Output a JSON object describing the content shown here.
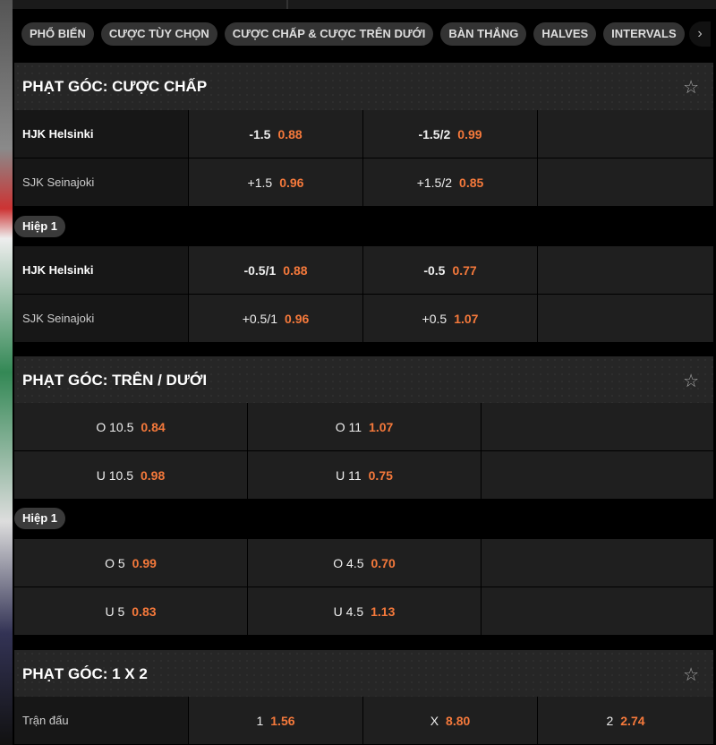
{
  "tabs": [
    "PHỔ BIẾN",
    "CƯỢC TÙY CHỌN",
    "CƯỢC CHẤP & CƯỢC TRÊN DƯỚI",
    "BÀN THẮNG",
    "HALVES",
    "INTERVALS"
  ],
  "colors": {
    "odds": "#f5793b",
    "background": "#000000"
  },
  "sections": [
    {
      "title": "PHẠT GÓC: CƯỢC CHẤP",
      "full": {
        "rows": [
          {
            "team": "HJK Helsinki",
            "c": [
              [
                "-1.5",
                "0.88"
              ],
              [
                "-1.5/2",
                "0.99"
              ]
            ]
          },
          {
            "team": "SJK Seinajoki",
            "c": [
              [
                "+1.5",
                "0.96"
              ],
              [
                "+1.5/2",
                "0.85"
              ]
            ]
          }
        ]
      },
      "half_label": "Hiệp 1",
      "half": {
        "rows": [
          {
            "team": "HJK Helsinki",
            "c": [
              [
                "-0.5/1",
                "0.88"
              ],
              [
                "-0.5",
                "0.77"
              ]
            ]
          },
          {
            "team": "SJK Seinajoki",
            "c": [
              [
                "+0.5/1",
                "0.96"
              ],
              [
                "+0.5",
                "1.07"
              ]
            ]
          }
        ]
      }
    },
    {
      "title": "PHẠT GÓC: TRÊN / DƯỚI",
      "full": {
        "rows": [
          [
            [
              "O 10.5",
              "0.84"
            ],
            [
              "O 11",
              "1.07"
            ]
          ],
          [
            [
              "U 10.5",
              "0.98"
            ],
            [
              "U 11",
              "0.75"
            ]
          ]
        ]
      },
      "half_label": "Hiệp 1",
      "half": {
        "rows": [
          [
            [
              "O 5",
              "0.99"
            ],
            [
              "O 4.5",
              "0.70"
            ]
          ],
          [
            [
              "U 5",
              "0.83"
            ],
            [
              "U 4.5",
              "1.13"
            ]
          ]
        ]
      }
    },
    {
      "title": "PHẠT GÓC: 1 X 2",
      "row": {
        "label": "Trận đấu",
        "c": [
          [
            "1",
            "1.56"
          ],
          [
            "X",
            "8.80"
          ],
          [
            "2",
            "2.74"
          ]
        ]
      }
    }
  ]
}
